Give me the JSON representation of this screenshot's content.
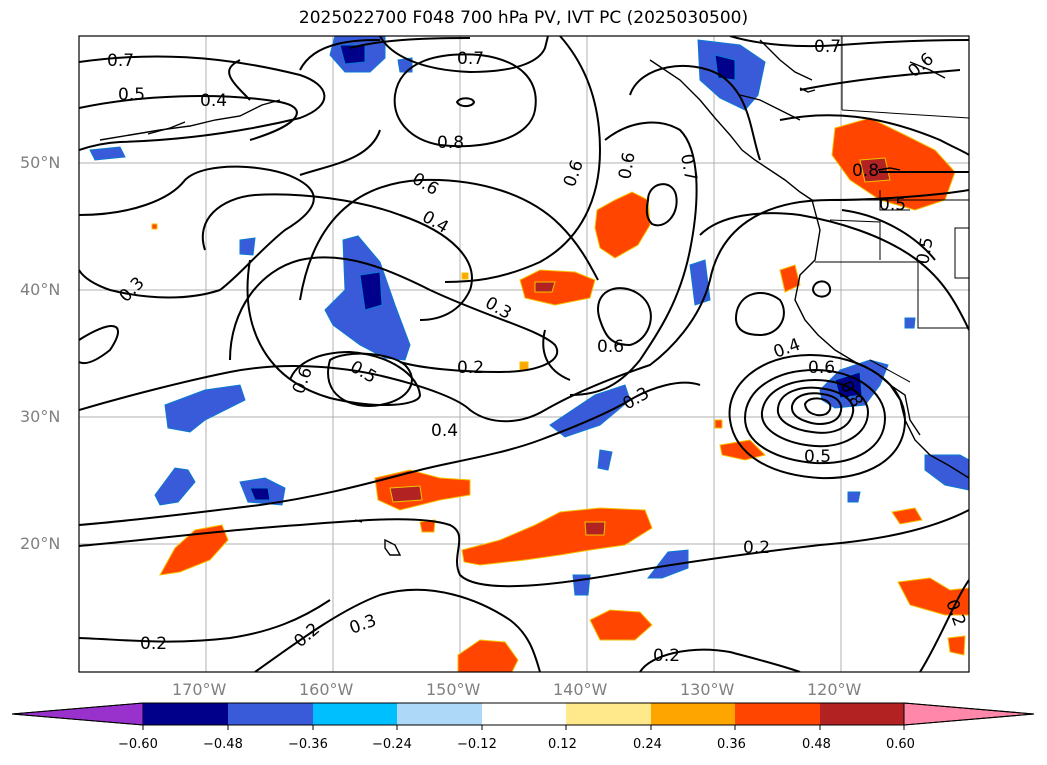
{
  "title": "2025022700 F048 700 hPa PV, IVT PC (2025030500)",
  "latitude_ticks": [
    "50°N",
    "40°N",
    "30°N",
    "20°N"
  ],
  "longitude_ticks": [
    "170°W",
    "160°W",
    "150°W",
    "140°W",
    "130°W",
    "120°W"
  ],
  "contour_labels": [
    "0.7",
    "0.5",
    "0.4",
    "0.7",
    "0.8",
    "0.6",
    "0.4",
    "0.6",
    "0.7",
    "0.6",
    "0.7",
    "0.6",
    "0.8",
    "0.5",
    "0.5",
    "0.3",
    "0.3",
    "0.6",
    "0.6",
    "0.5",
    "0.2",
    "0.3",
    "0.4",
    "0.4",
    "0.6",
    "0.8",
    "0.5",
    "0.2",
    "0.2",
    "0.3",
    "0.2",
    "0.2",
    "0.2"
  ],
  "colorbar": {
    "tick_labels": [
      "−0.60",
      "−0.48",
      "−0.36",
      "−0.24",
      "−0.12",
      "0.12",
      "0.24",
      "0.36",
      "0.48",
      "0.60"
    ],
    "colors": [
      "#9932cc",
      "#00008b",
      "#3a5bd9",
      "#00bfff",
      "#add8f8",
      "#ffffff",
      "#ffe98a",
      "#ffa500",
      "#ff4500",
      "#b22222",
      "#ff88aa"
    ]
  }
}
